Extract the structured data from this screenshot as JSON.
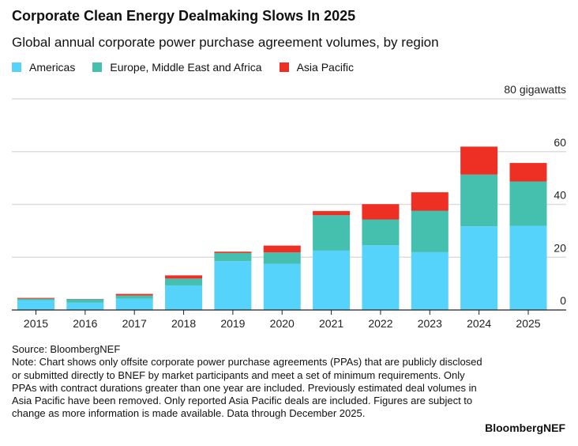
{
  "chart_data": {
    "type": "bar",
    "stacked": true,
    "title": "Corporate Clean Energy Dealmaking Slows In 2025",
    "subtitle": "Global annual corporate power purchase agreement volumes, by region",
    "ylabel_unit": "gigawatts",
    "ylim": [
      0,
      80
    ],
    "yticks": [
      0,
      20,
      40,
      60,
      80
    ],
    "ytick_labels": [
      "0",
      "20",
      "40",
      "60",
      "80 gigawatts"
    ],
    "grid": true,
    "legend_position": "top-left",
    "categories": [
      "2015",
      "2016",
      "2017",
      "2018",
      "2019",
      "2020",
      "2021",
      "2022",
      "2023",
      "2024",
      "2025"
    ],
    "series": [
      {
        "name": "Americas",
        "color": "#56d3fb",
        "values": [
          3.7,
          2.8,
          4.3,
          9.3,
          18.5,
          17.5,
          22.5,
          24.5,
          21.9,
          31.7,
          31.9
        ]
      },
      {
        "name": "Europe, Middle East and Africa",
        "color": "#45bfae",
        "values": [
          0.6,
          1.3,
          1.2,
          2.6,
          3.1,
          4.3,
          13.4,
          9.8,
          15.7,
          19.6,
          16.8
        ]
      },
      {
        "name": "Asia Pacific",
        "color": "#ee3024",
        "values": [
          0.3,
          0.1,
          0.6,
          1.2,
          0.5,
          2.6,
          1.6,
          5.8,
          7.0,
          10.6,
          7.0
        ]
      }
    ]
  },
  "footer": {
    "source": "Source: BloombergNEF",
    "note": "Note: Chart shows only offsite corporate power purchase agreements (PPAs) that are publicly disclosed or submitted directly to BNEF by market participants and meet a set of minimum requirements. Only PPAs with contract durations greater than one year are included. Previously estimated deal volumes in Asia Pacific have been removed. Only reported Asia Pacific deals are included. Figures are subject to change as more information is made available. Data through December 2025.",
    "brand": "BloombergNEF"
  }
}
